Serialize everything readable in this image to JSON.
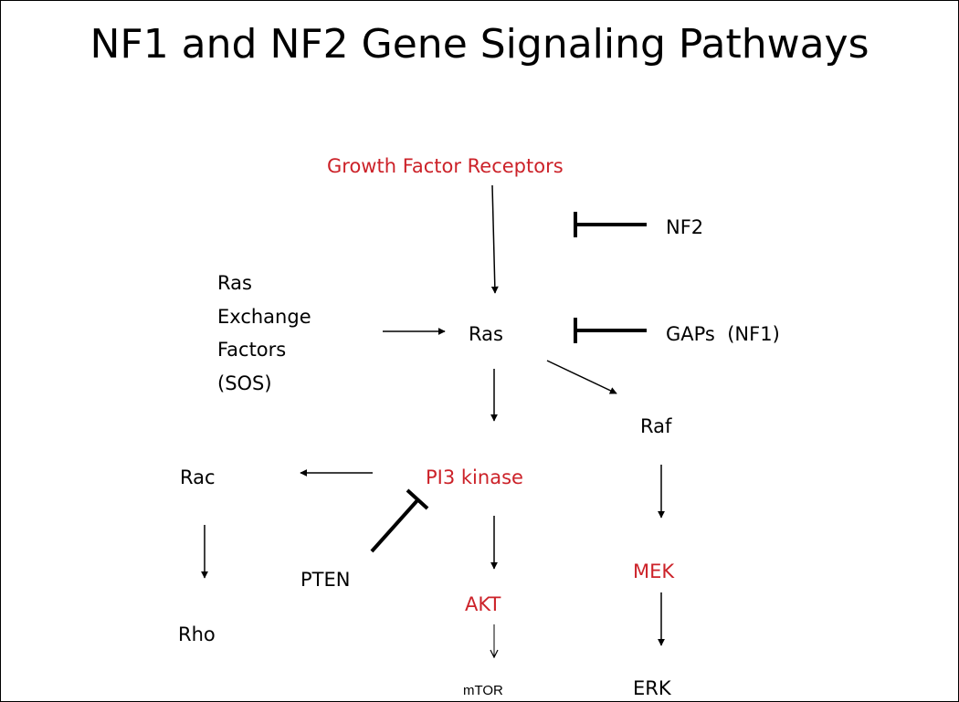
{
  "title": "NF1 and NF2 Gene Signaling Pathways",
  "colors": {
    "highlight": "#cc2229",
    "normal": "#000000"
  },
  "nodes": {
    "growth_factor_receptors": {
      "label": "Growth Factor Receptors",
      "highlight": true
    },
    "nf2": {
      "label": "NF2",
      "highlight": false
    },
    "ras_exchange_factors": {
      "lines": [
        "Ras",
        "Exchange",
        "Factors",
        "(SOS)"
      ],
      "highlight": false
    },
    "ras": {
      "label": "Ras",
      "highlight": false
    },
    "gaps_nf1": {
      "label": "GAPs  (NF1)",
      "highlight": false
    },
    "raf": {
      "label": "Raf",
      "highlight": false
    },
    "rac": {
      "label": "Rac",
      "highlight": false
    },
    "pi3_kinase": {
      "label": "PI3 kinase",
      "highlight": true
    },
    "pten": {
      "label": "PTEN",
      "highlight": false
    },
    "mek": {
      "label": "MEK",
      "highlight": true
    },
    "akt": {
      "label": "AKT",
      "highlight": true
    },
    "rho": {
      "label": "Rho",
      "highlight": false
    },
    "mtor": {
      "label": "mTOR",
      "highlight": false
    },
    "erk": {
      "label": "ERK",
      "highlight": false
    }
  },
  "edges": [
    {
      "from": "growth_factor_receptors",
      "to": "ras",
      "type": "activation"
    },
    {
      "from": "nf2",
      "to": "growth_factor_receptors",
      "type": "inhibition"
    },
    {
      "from": "ras_exchange_factors",
      "to": "ras",
      "type": "activation"
    },
    {
      "from": "gaps_nf1",
      "to": "ras",
      "type": "inhibition"
    },
    {
      "from": "ras",
      "to": "pi3_kinase",
      "type": "activation"
    },
    {
      "from": "ras",
      "to": "raf",
      "type": "activation"
    },
    {
      "from": "pi3_kinase",
      "to": "rac",
      "type": "activation"
    },
    {
      "from": "pten",
      "to": "pi3_kinase",
      "type": "inhibition"
    },
    {
      "from": "pi3_kinase",
      "to": "akt",
      "type": "activation"
    },
    {
      "from": "raf",
      "to": "mek",
      "type": "activation"
    },
    {
      "from": "rac",
      "to": "rho",
      "type": "activation"
    },
    {
      "from": "akt",
      "to": "mtor",
      "type": "activation"
    },
    {
      "from": "mek",
      "to": "erk",
      "type": "activation"
    }
  ]
}
